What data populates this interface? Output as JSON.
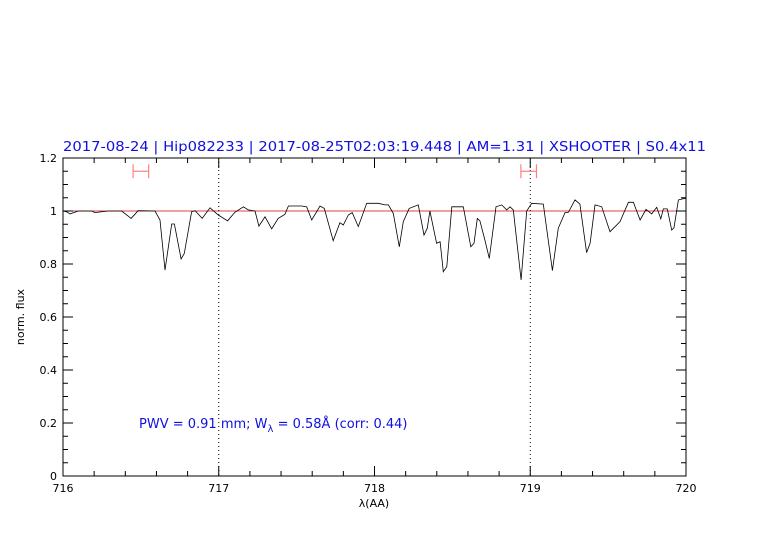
{
  "chart_data": {
    "type": "line",
    "title": "2017-08-24 | Hip082233 | 2017-08-25T02:03:19.448 | AM=1.31 | XSHOOTER | S0.4x11",
    "xlabel": "λ(AA)",
    "ylabel": "norm. flux",
    "xlim": [
      716,
      720
    ],
    "ylim": [
      0,
      1.2
    ],
    "x_ticks": [
      716,
      717,
      718,
      719,
      720
    ],
    "x_tick_labels": [
      "716",
      "717",
      "718",
      "719",
      "720"
    ],
    "y_ticks": [
      0,
      0.2,
      0.4,
      0.6,
      0.8,
      1,
      1.2
    ],
    "y_tick_labels": [
      "0",
      "0.2",
      "0.4",
      "0.6",
      "0.8",
      "1",
      "1.2"
    ],
    "reference_line": 1.0,
    "dotted_verticals": [
      717,
      719
    ],
    "error_bars": [
      {
        "x_min": 716.45,
        "x_max": 716.55,
        "y": 1.15
      },
      {
        "x_min": 718.94,
        "x_max": 719.04,
        "y": 1.15
      }
    ],
    "annotation": {
      "prefix": "PWV = 0.91 mm; W",
      "sub": "λ",
      "suffix": " = 0.58Å (corr: 0.44)"
    },
    "colors": {
      "spectrum": "#000000",
      "reference": "#e04040",
      "error_bar": "#ff8080",
      "text": "#1010e0"
    },
    "series": [
      {
        "name": "spectrum",
        "x": [
          716.0,
          716.024,
          716.045,
          716.098,
          716.184,
          716.205,
          716.289,
          716.377,
          716.437,
          716.482,
          716.591,
          716.623,
          716.655,
          716.698,
          716.715,
          716.758,
          716.779,
          716.826,
          716.848,
          716.894,
          716.944,
          716.997,
          717.057,
          717.104,
          717.158,
          717.19,
          717.233,
          717.258,
          717.297,
          717.34,
          717.382,
          717.425,
          717.447,
          717.533,
          717.565,
          717.597,
          717.65,
          717.678,
          717.735,
          717.778,
          717.8,
          717.832,
          717.857,
          717.896,
          717.95,
          718.024,
          718.067,
          718.089,
          718.121,
          718.159,
          718.185,
          718.223,
          718.281,
          718.318,
          718.339,
          718.356,
          718.399,
          718.421,
          718.442,
          718.464,
          718.496,
          718.57,
          718.618,
          718.639,
          718.66,
          718.677,
          718.709,
          718.737,
          718.78,
          718.817,
          718.849,
          718.87,
          718.891,
          718.941,
          718.977,
          719.009,
          719.084,
          719.142,
          719.18,
          719.223,
          719.245,
          719.287,
          719.319,
          719.362,
          719.384,
          719.416,
          719.459,
          719.512,
          719.576,
          719.63,
          719.662,
          719.705,
          719.743,
          719.78,
          719.812,
          719.838,
          719.854,
          719.88,
          719.908,
          719.923,
          719.951,
          719.994,
          720.0
        ],
        "y": [
          1.0,
          0.997,
          0.989,
          1.0,
          1.0,
          0.994,
          1.0,
          1.0,
          0.972,
          1.001,
          1.0,
          0.966,
          0.777,
          0.951,
          0.951,
          0.819,
          0.84,
          0.997,
          1.001,
          0.972,
          1.012,
          0.985,
          0.963,
          0.995,
          1.016,
          1.004,
          1.0,
          0.943,
          0.978,
          0.933,
          0.972,
          0.987,
          1.019,
          1.019,
          1.016,
          0.966,
          1.019,
          1.01,
          0.888,
          0.956,
          0.947,
          0.985,
          0.994,
          0.941,
          1.029,
          1.029,
          1.023,
          1.023,
          0.991,
          0.865,
          0.96,
          1.01,
          1.023,
          0.909,
          0.935,
          1.0,
          0.878,
          0.884,
          0.771,
          0.79,
          1.016,
          1.016,
          0.865,
          0.878,
          0.972,
          0.963,
          0.89,
          0.821,
          1.016,
          1.023,
          1.004,
          1.016,
          1.004,
          0.74,
          1.0,
          1.029,
          1.026,
          0.775,
          0.935,
          0.994,
          0.995,
          1.042,
          1.026,
          0.843,
          0.878,
          1.023,
          1.016,
          0.922,
          0.96,
          1.033,
          1.033,
          0.966,
          1.006,
          0.989,
          1.014,
          0.97,
          1.008,
          1.008,
          0.928,
          0.937,
          1.042,
          1.048,
          1.048
        ]
      }
    ]
  }
}
